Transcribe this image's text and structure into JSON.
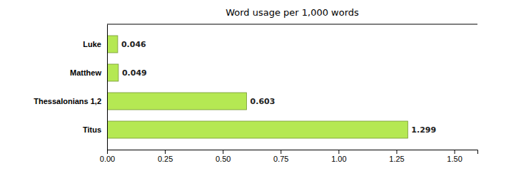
{
  "chart_data": {
    "type": "bar",
    "orientation": "horizontal",
    "title": "Word usage per 1,000 words",
    "categories": [
      "Titus",
      "Thessalonians 1,2",
      "Matthew",
      "Luke"
    ],
    "values": [
      1.299,
      0.603,
      0.049,
      0.046
    ],
    "color": "#b5e853",
    "xlim": [
      0,
      1.6
    ],
    "xticks": [
      {
        "value": 0,
        "label": "0.00"
      },
      0.25,
      {
        "value": 0.5,
        "label": "0.50"
      },
      0.75,
      {
        "value": 1,
        "label": "1.00"
      },
      1.25,
      {
        "value": 1.5,
        "label": "1.50"
      }
    ],
    "data_labels": true,
    "grid": false
  }
}
